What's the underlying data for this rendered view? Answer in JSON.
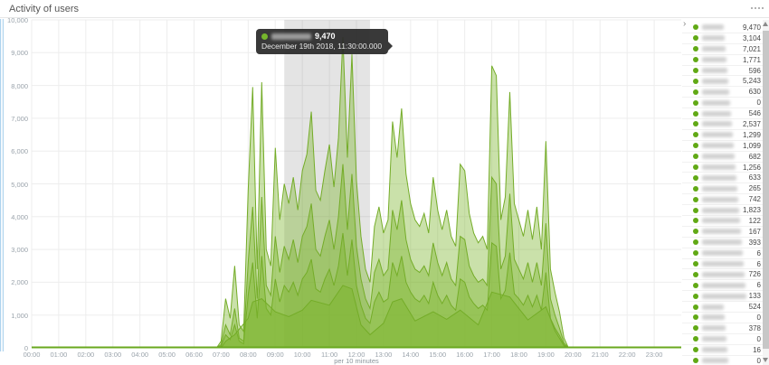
{
  "panel": {
    "title": "Activity of users"
  },
  "tooltip": {
    "value": "9,470",
    "timestamp": "December 19th 2018, 11:30:00.000"
  },
  "legend": {
    "values": [
      "9,470",
      "3,104",
      "7,021",
      "1,771",
      "596",
      "5,243",
      "630",
      "0",
      "546",
      "2,537",
      "1,299",
      "1,099",
      "682",
      "1,256",
      "633",
      "265",
      "742",
      "1,823",
      "122",
      "167",
      "393",
      "6",
      "6",
      "726",
      "6",
      "133",
      "524",
      "0",
      "378",
      "0",
      "16",
      "0"
    ]
  },
  "chart_data": {
    "type": "area",
    "title": "Activity of users",
    "xlabel": "per 10 minutes",
    "ylabel": "",
    "ylim": [
      0,
      10000
    ],
    "y_tick_interval": 1000,
    "y_tick_labels": [
      "10,000",
      "9,000",
      "8,000",
      "7,000",
      "6,000",
      "5,000",
      "4,000",
      "3,000",
      "2,000",
      "1,000",
      "0"
    ],
    "x_domain_minutes": [
      0,
      1440
    ],
    "x_tick_labels": [
      "00:00",
      "01:00",
      "02:00",
      "03:00",
      "04:00",
      "05:00",
      "06:00",
      "07:00",
      "08:00",
      "09:00",
      "10:00",
      "11:00",
      "12:00",
      "13:00",
      "14:00",
      "15:00",
      "16:00",
      "17:00",
      "18:00",
      "19:00",
      "20:00",
      "21:00",
      "22:00",
      "23:00"
    ],
    "grid": true,
    "legend_position": "right",
    "selection_band_minutes": [
      560,
      750
    ],
    "hover_point": {
      "minutes": 690,
      "value": 9470
    },
    "colors": {
      "area_fill": "#7ab32a",
      "fill_opacity": 0.4,
      "area_stroke": "#74ac28",
      "zero_line": "#69a81f",
      "legend_dot": "#61a915",
      "selection_band": "rgba(90,90,90,0.16)",
      "grid_line": "#ededed"
    },
    "series": [
      {
        "name": "series-1",
        "points": [
          0,
          0,
          400,
          0,
          410,
          0,
          420,
          200,
          430,
          1500,
          440,
          900,
          450,
          2500,
          460,
          700,
          470,
          500,
          480,
          4800,
          490,
          7950,
          500,
          2400,
          510,
          8100,
          520,
          3000,
          530,
          2500,
          540,
          6100,
          550,
          3900,
          560,
          5000,
          570,
          4400,
          580,
          5200,
          590,
          4200,
          600,
          5400,
          610,
          5900,
          620,
          7200,
          630,
          4800,
          640,
          4500,
          650,
          5400,
          660,
          6200,
          670,
          4900,
          680,
          6400,
          690,
          9470,
          700,
          5800,
          710,
          8950,
          720,
          5100,
          730,
          3400,
          740,
          2400,
          750,
          2000,
          760,
          3700,
          770,
          4300,
          780,
          3500,
          790,
          3900,
          800,
          6900,
          810,
          5800,
          820,
          7300,
          830,
          5300,
          840,
          4400,
          850,
          3900,
          860,
          3700,
          870,
          4100,
          880,
          3500,
          890,
          5200,
          900,
          4200,
          910,
          3600,
          920,
          4200,
          930,
          3400,
          940,
          3100,
          950,
          5600,
          960,
          5400,
          970,
          4100,
          980,
          3500,
          990,
          3200,
          1000,
          3400,
          1010,
          3000,
          1020,
          8600,
          1030,
          8300,
          1040,
          3900,
          1050,
          4600,
          1060,
          7800,
          1070,
          4400,
          1080,
          3900,
          1090,
          3400,
          1100,
          4200,
          1110,
          3300,
          1120,
          4300,
          1130,
          3000,
          1140,
          6300,
          1150,
          2400,
          1160,
          1700,
          1170,
          1100,
          1180,
          300,
          1190,
          0,
          1440,
          0
        ]
      },
      {
        "name": "series-2",
        "points": [
          0,
          0,
          410,
          0,
          420,
          100,
          430,
          700,
          440,
          400,
          450,
          1200,
          460,
          300,
          470,
          200,
          480,
          2600,
          490,
          4300,
          500,
          1500,
          510,
          4600,
          520,
          1900,
          530,
          1600,
          540,
          3400,
          550,
          2300,
          560,
          3100,
          570,
          2700,
          580,
          3300,
          590,
          2600,
          600,
          3400,
          610,
          3700,
          620,
          4400,
          630,
          3000,
          640,
          2800,
          650,
          3400,
          660,
          3900,
          670,
          3000,
          680,
          4000,
          690,
          5600,
          700,
          3600,
          710,
          5300,
          720,
          3100,
          730,
          2100,
          740,
          1500,
          750,
          1200,
          760,
          2300,
          770,
          2700,
          780,
          2200,
          790,
          2400,
          800,
          4200,
          810,
          3600,
          820,
          4500,
          830,
          3300,
          840,
          2700,
          850,
          2400,
          860,
          2300,
          870,
          2500,
          880,
          2200,
          890,
          3200,
          900,
          2600,
          910,
          2200,
          920,
          2600,
          930,
          2100,
          940,
          1900,
          950,
          3400,
          960,
          3300,
          970,
          2500,
          980,
          2200,
          990,
          2000,
          1000,
          2100,
          1010,
          1900,
          1020,
          5200,
          1030,
          5000,
          1040,
          2400,
          1050,
          2800,
          1060,
          4700,
          1070,
          2700,
          1080,
          2400,
          1090,
          2100,
          1100,
          2600,
          1110,
          2000,
          1120,
          2600,
          1130,
          1900,
          1140,
          3800,
          1150,
          1500,
          1160,
          1000,
          1170,
          600,
          1180,
          150,
          1190,
          0,
          1440,
          0
        ]
      },
      {
        "name": "series-3",
        "points": [
          0,
          0,
          410,
          0,
          420,
          50,
          430,
          400,
          440,
          250,
          450,
          700,
          460,
          200,
          470,
          120,
          480,
          1600,
          490,
          2600,
          500,
          900,
          510,
          2800,
          520,
          1200,
          530,
          1000,
          540,
          2100,
          550,
          1400,
          560,
          1900,
          570,
          1700,
          580,
          2000,
          590,
          1600,
          600,
          2100,
          610,
          2300,
          620,
          2700,
          630,
          1800,
          640,
          1700,
          650,
          2100,
          660,
          2400,
          670,
          1900,
          680,
          2500,
          690,
          3500,
          700,
          2200,
          710,
          3300,
          720,
          1900,
          730,
          1300,
          740,
          900,
          750,
          750,
          760,
          1400,
          770,
          1700,
          780,
          1400,
          790,
          1500,
          800,
          2600,
          810,
          2200,
          820,
          2800,
          830,
          2000,
          840,
          1700,
          850,
          1500,
          860,
          1400,
          870,
          1600,
          880,
          1350,
          890,
          2000,
          900,
          1600,
          910,
          1350,
          920,
          1600,
          930,
          1300,
          940,
          1150,
          950,
          2100,
          960,
          2000,
          970,
          1550,
          980,
          1350,
          990,
          1200,
          1000,
          1300,
          1010,
          1150,
          1020,
          3200,
          1030,
          3100,
          1040,
          1500,
          1050,
          1750,
          1060,
          2900,
          1070,
          1650,
          1080,
          1500,
          1090,
          1300,
          1100,
          1600,
          1110,
          1250,
          1120,
          1600,
          1130,
          1150,
          1140,
          2300,
          1150,
          900,
          1160,
          600,
          1170,
          380,
          1180,
          90,
          1190,
          0,
          1440,
          0
        ]
      },
      {
        "name": "series-4",
        "points": [
          0,
          0,
          420,
          0,
          430,
          200,
          450,
          400,
          480,
          900,
          490,
          1400,
          510,
          1500,
          540,
          1100,
          570,
          950,
          600,
          1150,
          620,
          1450,
          660,
          1300,
          690,
          1900,
          710,
          1800,
          730,
          700,
          750,
          400,
          780,
          750,
          800,
          1400,
          820,
          1500,
          850,
          820,
          890,
          1100,
          920,
          870,
          950,
          1150,
          990,
          700,
          1020,
          1700,
          1060,
          1550,
          1100,
          850,
          1140,
          1250,
          1160,
          520,
          1180,
          60,
          1190,
          0,
          1440,
          0
        ]
      }
    ]
  }
}
